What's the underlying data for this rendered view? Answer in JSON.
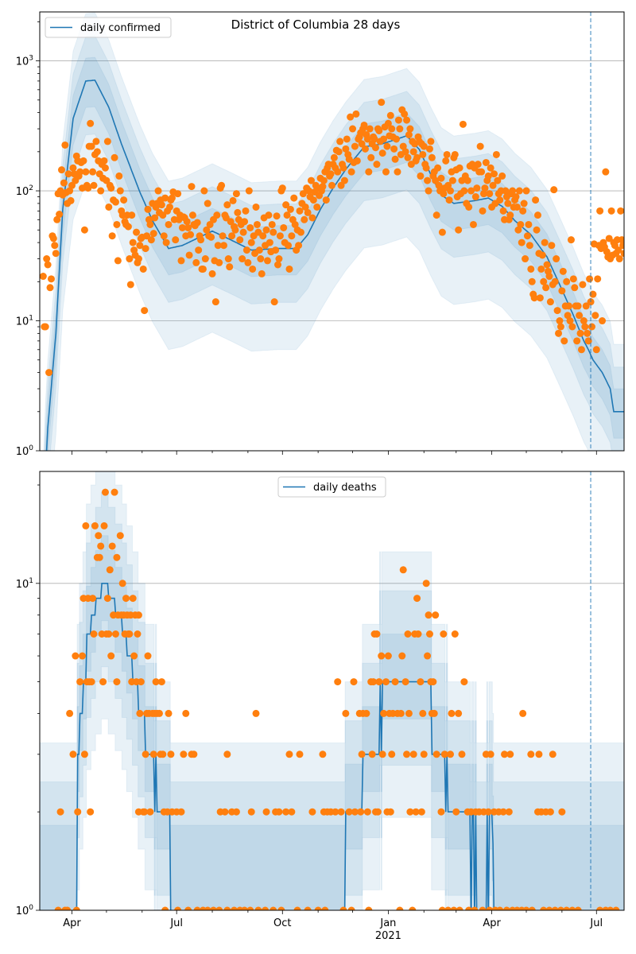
{
  "x_axis": {
    "unit": "days since 2020-04-01",
    "xlim": [
      -28,
      480
    ],
    "major_ticks": [
      {
        "day": 0,
        "label": "Apr"
      },
      {
        "day": 91,
        "label": "Jul"
      },
      {
        "day": 183,
        "label": "Oct"
      },
      {
        "day": 275,
        "label": "Jan",
        "sublabel": "2021"
      },
      {
        "day": 365,
        "label": "Apr"
      },
      {
        "day": 456,
        "label": "Jul"
      }
    ],
    "minor_ticks": [
      30,
      61,
      122,
      153,
      214,
      244,
      306,
      334,
      395,
      426
    ],
    "forecast_line_day": 451
  },
  "colors": {
    "median": "#1f77b4",
    "band": "#1f77b4",
    "observed": "#ff7f0e",
    "grid": "#b0b0b0"
  },
  "chart_data": [
    {
      "type": "line",
      "title": "District of Columbia 28 days",
      "legend": {
        "label": "daily confirmed",
        "placement": "upper-left"
      },
      "yscale": "log",
      "ylim": [
        1,
        2380
      ],
      "yticks": [
        {
          "value": 1,
          "base": "10",
          "exp": "0"
        },
        {
          "value": 10,
          "base": "10",
          "exp": "1"
        },
        {
          "value": 100,
          "base": "10",
          "exp": "2"
        },
        {
          "value": 1000,
          "base": "10",
          "exp": "3"
        }
      ],
      "grid": "y-major",
      "median": [
        [
          -28,
          0.05
        ],
        [
          -23,
          0.7
        ],
        [
          -21,
          1.5
        ],
        [
          -14,
          8
        ],
        [
          -8,
          72
        ],
        [
          1,
          360
        ],
        [
          12,
          700
        ],
        [
          20,
          710
        ],
        [
          32,
          440
        ],
        [
          43,
          230
        ],
        [
          59,
          98
        ],
        [
          70,
          59
        ],
        [
          84,
          36
        ],
        [
          96,
          38
        ],
        [
          122,
          49
        ],
        [
          138,
          42
        ],
        [
          156,
          35
        ],
        [
          179,
          36
        ],
        [
          195,
          36
        ],
        [
          205,
          46
        ],
        [
          216,
          72
        ],
        [
          227,
          105
        ],
        [
          238,
          146
        ],
        [
          254,
          218
        ],
        [
          270,
          230
        ],
        [
          291,
          265
        ],
        [
          302,
          208
        ],
        [
          312,
          133
        ],
        [
          321,
          93
        ],
        [
          332,
          80
        ],
        [
          350,
          84
        ],
        [
          362,
          88
        ],
        [
          374,
          76
        ],
        [
          385,
          59
        ],
        [
          399,
          46
        ],
        [
          413,
          31
        ],
        [
          424,
          19
        ],
        [
          436,
          11
        ],
        [
          445,
          7
        ],
        [
          449,
          6
        ],
        [
          453,
          5
        ],
        [
          461,
          4
        ],
        [
          468,
          3
        ],
        [
          471,
          2
        ],
        [
          480,
          2
        ]
      ],
      "band_upper_factors": [
        1.5,
        2.2,
        3.3
      ],
      "band_lower_factors": [
        1.6,
        2.6,
        6.0
      ],
      "observed": {
        "start_day": -25,
        "values": [
          22,
          9,
          9,
          30,
          27,
          4,
          18,
          21,
          45,
          43,
          38,
          33,
          60,
          95,
          66,
          100,
          145,
          93,
          115,
          225,
          97,
          80,
          135,
          100,
          84,
          110,
          150,
          135,
          120,
          185,
          170,
          130,
          140,
          165,
          105,
          170,
          50,
          140,
          110,
          105,
          220,
          330,
          220,
          140,
          110,
          190,
          240,
          200,
          170,
          135,
          100,
          160,
          125,
          170,
          150,
          120,
          240,
          75,
          110,
          105,
          45,
          85,
          180,
          82,
          55,
          29,
          130,
          100,
          70,
          65,
          85,
          58,
          55,
          65,
          53,
          30,
          19,
          65,
          40,
          35,
          32,
          48,
          28,
          30,
          38,
          43,
          44,
          25,
          12,
          36,
          45,
          72,
          60,
          55,
          42,
          80,
          47,
          62,
          75,
          80,
          100,
          68,
          85,
          78,
          65,
          45,
          88,
          40,
          70,
          55,
          75,
          85,
          88,
          98,
          60,
          42,
          70,
          95,
          60,
          65,
          29,
          52,
          63,
          62,
          45,
          58,
          52,
          32,
          46,
          108,
          65,
          55,
          54,
          28,
          57,
          35,
          45,
          42,
          25,
          25,
          100,
          30,
          50,
          80,
          45,
          55,
          44,
          23,
          60,
          29,
          14,
          65,
          38,
          28,
          105,
          110,
          45,
          38,
          65,
          62,
          78,
          30,
          26,
          58,
          45,
          84,
          53,
          50,
          95,
          68,
          60,
          42,
          55,
          30,
          48,
          58,
          70,
          35,
          28,
          100,
          52,
          40,
          25,
          45,
          33,
          75,
          55,
          48,
          35,
          30,
          23,
          45,
          62,
          38,
          50,
          29,
          65,
          40,
          34,
          55,
          48,
          14,
          35,
          64,
          27,
          30,
          45,
          100,
          105,
          52,
          40,
          78,
          65,
          38,
          25,
          72,
          45,
          60,
          88,
          55,
          35,
          50,
          38,
          70,
          48,
          80,
          95,
          60,
          75,
          105,
          68,
          100,
          90,
          120,
          62,
          85,
          98,
          110,
          75,
          105,
          92,
          125,
          100,
          108,
          120,
          140,
          85,
          150,
          160,
          130,
          135,
          110,
          160,
          180,
          150,
          205,
          140,
          200,
          240,
          110,
          160,
          150,
          120,
          210,
          250,
          190,
          175,
          370,
          140,
          300,
          165,
          220,
          390,
          170,
          250,
          260,
          280,
          230,
          300,
          320,
          210,
          270,
          250,
          140,
          300,
          180,
          230,
          260,
          250,
          215,
          160,
          300,
          290,
          240,
          480,
          195,
          250,
          310,
          140,
          220,
          330,
          265,
          380,
          300,
          260,
          210,
          175,
          250,
          140,
          350,
          300,
          190,
          420,
          220,
          390,
          200,
          350,
          180,
          270,
          300,
          160,
          240,
          200,
          230,
          170,
          180,
          260,
          240,
          130,
          230,
          190,
          220,
          160,
          150,
          120,
          100,
          210,
          240,
          180,
          130,
          140,
          120,
          65,
          150,
          110,
          100,
          125,
          48,
          95,
          105,
          170,
          190,
          110,
          85,
          100,
          140,
          120,
          180,
          190,
          145,
          90,
          50,
          150,
          95,
          120,
          325,
          100,
          130,
          80,
          120,
          75,
          155,
          100,
          160,
          55,
          150,
          90,
          105,
          160,
          140,
          220,
          140,
          70,
          95,
          105,
          165,
          120,
          130,
          95,
          150,
          75,
          110,
          135,
          80,
          190,
          120,
          95,
          85,
          100,
          130,
          70,
          60,
          100,
          90,
          80,
          60,
          65,
          95,
          100,
          75,
          85,
          90,
          75,
          50,
          100,
          55,
          40,
          70,
          80,
          30,
          100,
          45,
          55,
          38,
          25,
          20,
          16,
          15,
          85,
          50,
          65,
          33,
          15,
          25,
          32,
          20,
          40,
          18,
          27,
          24,
          22,
          14,
          38,
          19,
          102,
          20,
          30,
          12,
          8,
          10,
          9,
          17,
          24,
          7,
          13,
          20,
          11,
          13,
          10,
          42,
          9,
          21,
          18,
          13,
          7,
          13,
          11,
          8,
          6,
          19,
          10,
          9,
          13,
          8,
          7,
          21,
          14,
          9,
          16,
          39,
          11,
          6,
          21,
          38,
          70,
          36,
          10,
          40,
          37,
          140,
          34,
          31,
          43,
          30,
          70,
          32,
          40,
          38,
          33,
          42,
          35,
          30,
          70,
          42,
          38,
          33
        ]
      }
    },
    {
      "type": "line",
      "legend": {
        "label": "daily deaths",
        "placement": "upper-center"
      },
      "yscale": "log",
      "ylim": [
        1,
        22
      ],
      "yticks": [
        {
          "value": 1,
          "base": "10",
          "exp": "0"
        },
        {
          "value": 10,
          "base": "10",
          "exp": "1"
        }
      ],
      "grid": "y-major",
      "median": [
        [
          -28,
          0
        ],
        [
          2,
          0
        ],
        [
          5,
          3
        ],
        [
          7,
          4
        ],
        [
          10,
          5
        ],
        [
          13,
          7
        ],
        [
          17,
          8
        ],
        [
          21,
          9
        ],
        [
          26,
          10
        ],
        [
          32,
          9
        ],
        [
          38,
          8
        ],
        [
          44,
          7
        ],
        [
          48,
          6
        ],
        [
          53,
          5
        ],
        [
          58,
          4
        ],
        [
          64,
          3
        ],
        [
          72,
          2
        ],
        [
          73,
          3
        ],
        [
          74,
          2
        ],
        [
          86,
          0
        ],
        [
          238,
          2
        ],
        [
          253,
          3
        ],
        [
          268,
          5
        ],
        [
          269,
          3
        ],
        [
          270,
          5
        ],
        [
          313,
          3
        ],
        [
          325,
          2
        ],
        [
          326,
          3
        ],
        [
          327,
          2
        ],
        [
          347,
          0
        ],
        [
          348,
          2
        ],
        [
          350,
          0
        ],
        [
          351,
          2
        ],
        [
          352,
          0
        ],
        [
          361,
          2
        ],
        [
          362,
          0
        ],
        [
          363,
          2
        ],
        [
          366,
          1.6
        ],
        [
          367,
          0
        ],
        [
          480,
          0
        ]
      ],
      "median_style": "step",
      "band_upper_factors": [
        1.4,
        1.9,
        2.5
      ],
      "band_lower_factors": [
        1.3,
        1.8,
        2.6
      ],
      "band_floor": 1.3,
      "observed_by_value": {
        "19": [
          29,
          37
        ],
        "15": [
          12,
          20,
          28
        ],
        "14": [
          23,
          42
        ],
        "13": [
          25,
          35
        ],
        "12": [
          22,
          24,
          39
        ],
        "11": [
          33,
          288
        ],
        "10": [
          44,
          308
        ],
        "9": [
          10,
          14,
          18,
          31,
          47,
          53,
          300
        ],
        "8": [
          36,
          40,
          43,
          45,
          48,
          51,
          55,
          58,
          310,
          316
        ],
        "7": [
          19,
          26,
          30,
          32,
          38,
          46,
          49,
          50,
          57,
          263,
          265,
          292,
          298,
          301,
          311,
          323,
          333
        ],
        "6": [
          3,
          9,
          34,
          54,
          66,
          269,
          275,
          287,
          309
        ],
        "5": [
          7,
          13,
          15,
          17,
          27,
          39,
          52,
          56,
          60,
          73,
          78,
          231,
          245,
          260,
          262,
          267,
          273,
          281,
          290,
          303,
          312,
          314,
          341
        ],
        "4": [
          -2,
          59,
          65,
          67,
          70,
          72,
          74,
          76,
          84,
          99,
          160,
          238,
          250,
          253,
          256,
          271,
          276,
          279,
          283,
          286,
          293,
          305,
          313,
          315,
          330,
          336,
          392
        ],
        "3": [
          1,
          11,
          64,
          71,
          77,
          79,
          86,
          97,
          104,
          106,
          135,
          189,
          198,
          218,
          252,
          261,
          270,
          278,
          291,
          297,
          306,
          317,
          324,
          329,
          339,
          360,
          364,
          376,
          381,
          399,
          406,
          418
        ],
        "2": [
          -10,
          5,
          16,
          58,
          62,
          63,
          68,
          80,
          83,
          87,
          91,
          95,
          129,
          133,
          139,
          143,
          156,
          169,
          177,
          180,
          186,
          191,
          209,
          219,
          222,
          225,
          229,
          234,
          241,
          246,
          251,
          257,
          264,
          266,
          274,
          277,
          294,
          299,
          304,
          321,
          334,
          344,
          347,
          351,
          354,
          358,
          362,
          367,
          371,
          375,
          380,
          405,
          408,
          412,
          416,
          426
        ],
        "1": [
          -12,
          -6,
          -4,
          4,
          81,
          92,
          101,
          109,
          114,
          118,
          123,
          128,
          135,
          141,
          146,
          150,
          155,
          162,
          168,
          175,
          182,
          196,
          205,
          214,
          220,
          236,
          243,
          258,
          285,
          296,
          322,
          327,
          332,
          337,
          345,
          350,
          357,
          363,
          368,
          372,
          378,
          383,
          387,
          391,
          395,
          400,
          410,
          415,
          420,
          425,
          430,
          435,
          440,
          459,
          464,
          468,
          473
        ]
      }
    }
  ]
}
